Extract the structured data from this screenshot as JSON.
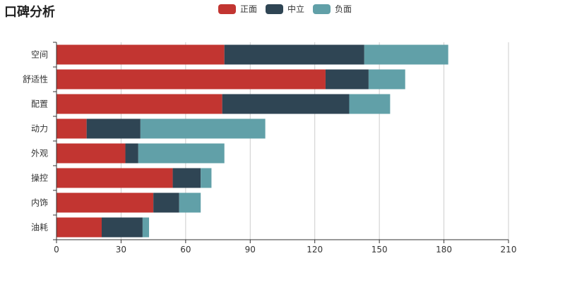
{
  "chart_data": {
    "type": "bar",
    "orientation": "horizontal",
    "stacked": true,
    "title": "口碑分析",
    "categories": [
      "空间",
      "舒适性",
      "配置",
      "动力",
      "外观",
      "操控",
      "内饰",
      "油耗"
    ],
    "series": [
      {
        "name": "正面",
        "color": "#c23531",
        "values": [
          78,
          125,
          77,
          14,
          32,
          54,
          45,
          21
        ]
      },
      {
        "name": "中立",
        "color": "#2f4554",
        "values": [
          65,
          20,
          59,
          25,
          6,
          13,
          12,
          19
        ]
      },
      {
        "name": "负面",
        "color": "#61a0a8",
        "values": [
          39,
          17,
          19,
          58,
          40,
          5,
          10,
          3
        ]
      }
    ],
    "xlim": [
      0,
      210
    ],
    "xticks": [
      "0",
      "30",
      "60",
      "90",
      "120",
      "150",
      "180",
      "210"
    ],
    "grid": true,
    "legend_position": "top-center"
  }
}
